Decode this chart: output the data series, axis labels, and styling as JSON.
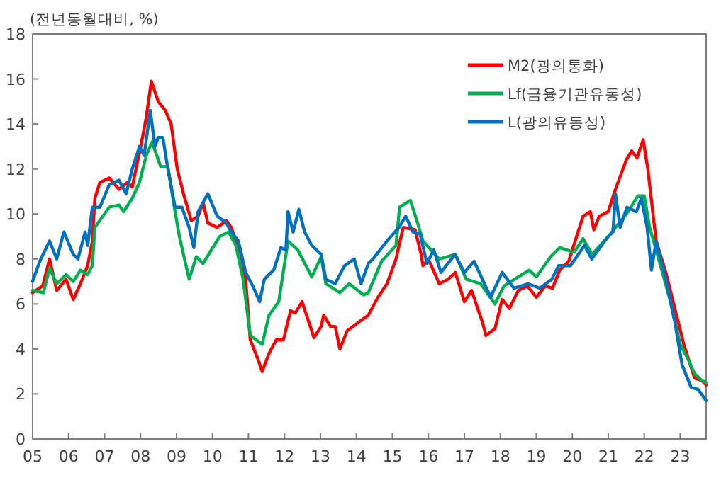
{
  "chart_data": {
    "type": "line",
    "ylabel": "(전년동월대비, %)",
    "xlim": [
      2005,
      2023.72
    ],
    "ylim": [
      0,
      18
    ],
    "yticks": [
      0,
      2,
      4,
      6,
      8,
      10,
      12,
      14,
      16,
      18
    ],
    "xticks": [
      {
        "value": 2005,
        "label": "05"
      },
      {
        "value": 2006,
        "label": "06"
      },
      {
        "value": 2007,
        "label": "07"
      },
      {
        "value": 2008,
        "label": "08"
      },
      {
        "value": 2009,
        "label": "09"
      },
      {
        "value": 2010,
        "label": "10"
      },
      {
        "value": 2011,
        "label": "11"
      },
      {
        "value": 2012,
        "label": "12"
      },
      {
        "value": 2013,
        "label": "13"
      },
      {
        "value": 2014,
        "label": "14"
      },
      {
        "value": 2015,
        "label": "15"
      },
      {
        "value": 2016,
        "label": "16"
      },
      {
        "value": 2017,
        "label": "17"
      },
      {
        "value": 2018,
        "label": "18"
      },
      {
        "value": 2019,
        "label": "19"
      },
      {
        "value": 2020,
        "label": "20"
      },
      {
        "value": 2021,
        "label": "21"
      },
      {
        "value": 2022,
        "label": "22"
      },
      {
        "value": 2023,
        "label": "23"
      }
    ],
    "legend": "top right",
    "series": [
      {
        "name": "M2(광의통화)",
        "color": "#ff0000",
        "x": [
          2005.0,
          2005.28,
          2005.47,
          2005.67,
          2005.93,
          2006.13,
          2006.33,
          2006.53,
          2006.66,
          2006.73,
          2006.87,
          2007.13,
          2007.4,
          2007.64,
          2007.77,
          2008.03,
          2008.16,
          2008.3,
          2008.49,
          2008.69,
          2008.85,
          2009.02,
          2009.21,
          2009.41,
          2009.6,
          2009.74,
          2009.87,
          2010.13,
          2010.39,
          2010.52,
          2010.79,
          2010.92,
          2011.05,
          2011.25,
          2011.38,
          2011.57,
          2011.77,
          2011.97,
          2012.17,
          2012.3,
          2012.49,
          2012.82,
          2013.02,
          2013.09,
          2013.28,
          2013.41,
          2013.54,
          2013.74,
          2014.07,
          2014.33,
          2014.6,
          2014.85,
          2015.1,
          2015.3,
          2015.63,
          2015.8,
          2015.85,
          2016.0,
          2016.3,
          2016.55,
          2016.75,
          2017.0,
          2017.2,
          2017.5,
          2017.6,
          2017.85,
          2018.05,
          2018.25,
          2018.5,
          2018.75,
          2019.0,
          2019.25,
          2019.45,
          2019.65,
          2019.9,
          2020.2,
          2020.3,
          2020.5,
          2020.6,
          2020.75,
          2021.0,
          2021.2,
          2021.5,
          2021.65,
          2021.8,
          2021.97,
          2022.1,
          2022.25,
          2022.33,
          2022.6,
          2022.85,
          2023.1,
          2023.4,
          2023.6,
          2023.72
        ],
        "values": [
          6.5,
          6.8,
          8.0,
          6.6,
          7.1,
          6.2,
          6.9,
          7.7,
          8.8,
          10.7,
          11.4,
          11.6,
          11.1,
          11.4,
          11.2,
          13.2,
          14.3,
          15.9,
          15.0,
          14.6,
          14.0,
          12.0,
          10.8,
          9.7,
          9.9,
          10.5,
          9.6,
          9.4,
          9.7,
          9.4,
          8.2,
          7.1,
          4.4,
          3.6,
          3.0,
          3.8,
          4.4,
          4.4,
          5.7,
          5.6,
          6.1,
          4.5,
          5.0,
          5.5,
          5.0,
          5.0,
          4.0,
          4.8,
          5.2,
          5.5,
          6.3,
          6.9,
          8.0,
          9.4,
          9.3,
          8.2,
          7.7,
          8.0,
          6.9,
          7.1,
          7.4,
          6.1,
          6.6,
          5.2,
          4.6,
          4.9,
          6.2,
          5.8,
          6.6,
          6.8,
          6.3,
          6.8,
          6.7,
          7.5,
          7.9,
          9.4,
          9.9,
          10.1,
          9.3,
          9.9,
          10.1,
          11.1,
          12.4,
          12.8,
          12.5,
          13.3,
          12.0,
          9.9,
          8.8,
          7.4,
          5.8,
          4.2,
          2.7,
          2.6,
          2.4
        ]
      },
      {
        "name": "Lf(금융기관유동성)",
        "color": "#00b050",
        "x": [
          2005.0,
          2005.3,
          2005.47,
          2005.67,
          2005.93,
          2006.13,
          2006.33,
          2006.53,
          2006.66,
          2006.73,
          2007.13,
          2007.4,
          2007.53,
          2007.77,
          2007.97,
          2008.16,
          2008.32,
          2008.56,
          2008.76,
          2008.96,
          2009.08,
          2009.35,
          2009.55,
          2009.74,
          2009.93,
          2010.2,
          2010.45,
          2010.65,
          2010.85,
          2011.05,
          2011.38,
          2011.57,
          2011.84,
          2012.1,
          2012.37,
          2012.76,
          2013.02,
          2013.15,
          2013.54,
          2013.8,
          2014.2,
          2014.33,
          2014.7,
          2015.1,
          2015.2,
          2015.5,
          2015.7,
          2015.85,
          2016.3,
          2016.75,
          2017.05,
          2017.45,
          2017.85,
          2018.1,
          2018.5,
          2018.8,
          2019.0,
          2019.4,
          2019.65,
          2020.05,
          2020.3,
          2020.55,
          2021.0,
          2021.2,
          2021.55,
          2021.82,
          2022.0,
          2022.15,
          2022.33,
          2022.73,
          2023.0,
          2023.2,
          2023.4,
          2023.6,
          2023.72
        ],
        "values": [
          6.6,
          6.5,
          7.6,
          6.9,
          7.3,
          7.0,
          7.5,
          7.3,
          7.7,
          9.4,
          10.3,
          10.4,
          10.1,
          10.7,
          11.4,
          12.6,
          13.2,
          12.1,
          12.1,
          10.1,
          9.0,
          7.1,
          8.1,
          7.8,
          8.3,
          9.0,
          9.2,
          8.6,
          7.1,
          4.6,
          4.2,
          5.5,
          6.1,
          8.8,
          8.4,
          7.2,
          8.1,
          6.9,
          6.5,
          6.9,
          6.4,
          6.5,
          7.9,
          8.6,
          10.3,
          10.6,
          9.6,
          8.8,
          8.0,
          8.2,
          7.1,
          6.9,
          6.0,
          6.8,
          7.2,
          7.5,
          7.2,
          8.1,
          8.5,
          8.3,
          8.9,
          8.2,
          9.0,
          9.4,
          10.1,
          10.8,
          10.8,
          9.4,
          8.4,
          6.1,
          4.2,
          3.6,
          2.9,
          2.6,
          2.5
        ]
      },
      {
        "name": "L(광의유동성)",
        "color": "#0070c0",
        "x": [
          2005.0,
          2005.2,
          2005.47,
          2005.67,
          2005.87,
          2006.13,
          2006.26,
          2006.46,
          2006.53,
          2006.66,
          2006.87,
          2007.13,
          2007.4,
          2007.6,
          2007.77,
          2007.97,
          2008.1,
          2008.27,
          2008.4,
          2008.49,
          2008.62,
          2008.76,
          2008.96,
          2009.15,
          2009.35,
          2009.48,
          2009.6,
          2009.87,
          2010.13,
          2010.39,
          2010.52,
          2010.72,
          2010.92,
          2011.12,
          2011.31,
          2011.44,
          2011.7,
          2011.9,
          2012.04,
          2012.1,
          2012.24,
          2012.4,
          2012.56,
          2012.76,
          2013.02,
          2013.15,
          2013.41,
          2013.67,
          2013.94,
          2014.13,
          2014.33,
          2014.46,
          2014.85,
          2015.18,
          2015.37,
          2015.57,
          2015.77,
          2015.96,
          2016.15,
          2016.35,
          2016.74,
          2017.0,
          2017.27,
          2017.73,
          2018.05,
          2018.38,
          2018.77,
          2019.1,
          2019.43,
          2019.62,
          2019.95,
          2020.34,
          2020.54,
          2021.0,
          2021.13,
          2021.2,
          2021.33,
          2021.52,
          2021.78,
          2021.92,
          2022.08,
          2022.2,
          2022.33,
          2022.6,
          2022.85,
          2023.05,
          2023.3,
          2023.5,
          2023.72
        ],
        "values": [
          7.0,
          7.9,
          8.8,
          8.0,
          9.2,
          8.2,
          8.0,
          9.2,
          8.6,
          10.3,
          10.3,
          11.3,
          11.5,
          10.9,
          12.0,
          13.0,
          12.6,
          14.6,
          13.0,
          13.4,
          13.4,
          12.0,
          10.3,
          10.3,
          9.4,
          8.5,
          10.1,
          10.9,
          9.9,
          9.6,
          9.2,
          8.8,
          7.4,
          6.8,
          6.1,
          7.1,
          7.5,
          8.5,
          8.4,
          10.1,
          9.2,
          10.2,
          9.2,
          8.6,
          8.2,
          7.1,
          6.9,
          7.7,
          8.0,
          6.9,
          7.8,
          8.0,
          8.8,
          9.4,
          9.9,
          9.2,
          9.1,
          7.8,
          8.4,
          7.4,
          8.2,
          7.4,
          7.9,
          6.3,
          7.4,
          6.7,
          6.9,
          6.7,
          7.1,
          7.7,
          7.7,
          8.6,
          8.0,
          9.0,
          9.2,
          10.9,
          9.4,
          10.3,
          10.1,
          10.7,
          9.4,
          7.5,
          8.8,
          7.1,
          5.2,
          3.3,
          2.3,
          2.2,
          1.7
        ]
      }
    ]
  }
}
